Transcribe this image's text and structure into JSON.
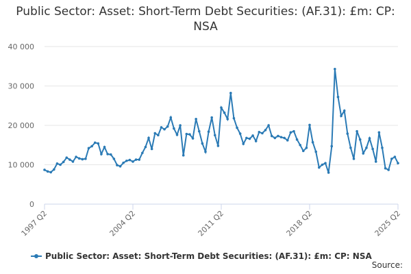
{
  "chart_data": {
    "type": "line",
    "title": "Public Sector: Asset: Short-Term Debt Securities: (AF.31): £m: CP: NSA",
    "source": "Source:",
    "categories": [
      "1997 Q2",
      null,
      null,
      null,
      null,
      null,
      null,
      null,
      null,
      null,
      null,
      null,
      null,
      null,
      null,
      null,
      null,
      null,
      null,
      null,
      null,
      null,
      null,
      null,
      null,
      null,
      null,
      null,
      "2004 Q2",
      null,
      null,
      null,
      null,
      null,
      null,
      null,
      null,
      null,
      null,
      null,
      null,
      null,
      null,
      null,
      null,
      null,
      null,
      null,
      null,
      null,
      null,
      null,
      null,
      null,
      null,
      null,
      "2011 Q2",
      null,
      null,
      null,
      null,
      null,
      null,
      null,
      null,
      null,
      null,
      null,
      null,
      null,
      null,
      null,
      null,
      null,
      null,
      null,
      null,
      null,
      null,
      null,
      null,
      null,
      null,
      null,
      "2018 Q2",
      null,
      null,
      null,
      null,
      null,
      null,
      null,
      null,
      null,
      null,
      null,
      null,
      null,
      null,
      null,
      null,
      null,
      null,
      null,
      null,
      null,
      null,
      null,
      null,
      null,
      null,
      null,
      "2025 Q2"
    ],
    "series": [
      {
        "name": "Public Sector: Asset: Short-Term Debt Securities: (AF.31): £m: CP: NSA",
        "color": "#2a7ab5",
        "values": [
          8700,
          8300,
          8100,
          8800,
          10300,
          10000,
          10700,
          11800,
          11300,
          10800,
          12000,
          11600,
          11400,
          11500,
          14200,
          14700,
          15600,
          15400,
          12700,
          14500,
          12700,
          12600,
          11500,
          9900,
          9600,
          10500,
          11000,
          11200,
          10800,
          11300,
          11300,
          13000,
          14500,
          16800,
          14000,
          18000,
          17500,
          19500,
          19000,
          19700,
          22000,
          19200,
          17600,
          20000,
          12400,
          17800,
          17700,
          16700,
          21600,
          18500,
          15400,
          13300,
          18400,
          22000,
          17500,
          14800,
          24500,
          23200,
          21600,
          28200,
          21800,
          19400,
          17900,
          15300,
          16800,
          16600,
          17400,
          16000,
          18300,
          18000,
          18800,
          20000,
          17300,
          16800,
          17300,
          17000,
          16800,
          16200,
          18200,
          18500,
          16400,
          15000,
          13500,
          14300,
          20100,
          15700,
          13300,
          9300,
          10000,
          10400,
          8000,
          14700,
          34300,
          27200,
          22400,
          23700,
          17900,
          14300,
          11500,
          18500,
          16400,
          12900,
          14300,
          16700,
          14000,
          10800,
          18200,
          14300,
          9100,
          8700,
          11500,
          12000,
          10400
        ]
      }
    ],
    "ylim": [
      0,
      40000
    ],
    "yticks": [
      0,
      {
        "value": 10000,
        "label": "10 000"
      },
      {
        "value": 20000,
        "label": "20 000"
      },
      {
        "value": 30000,
        "label": "30 000"
      },
      {
        "value": 40000,
        "label": "40 000"
      }
    ],
    "grid": true
  }
}
